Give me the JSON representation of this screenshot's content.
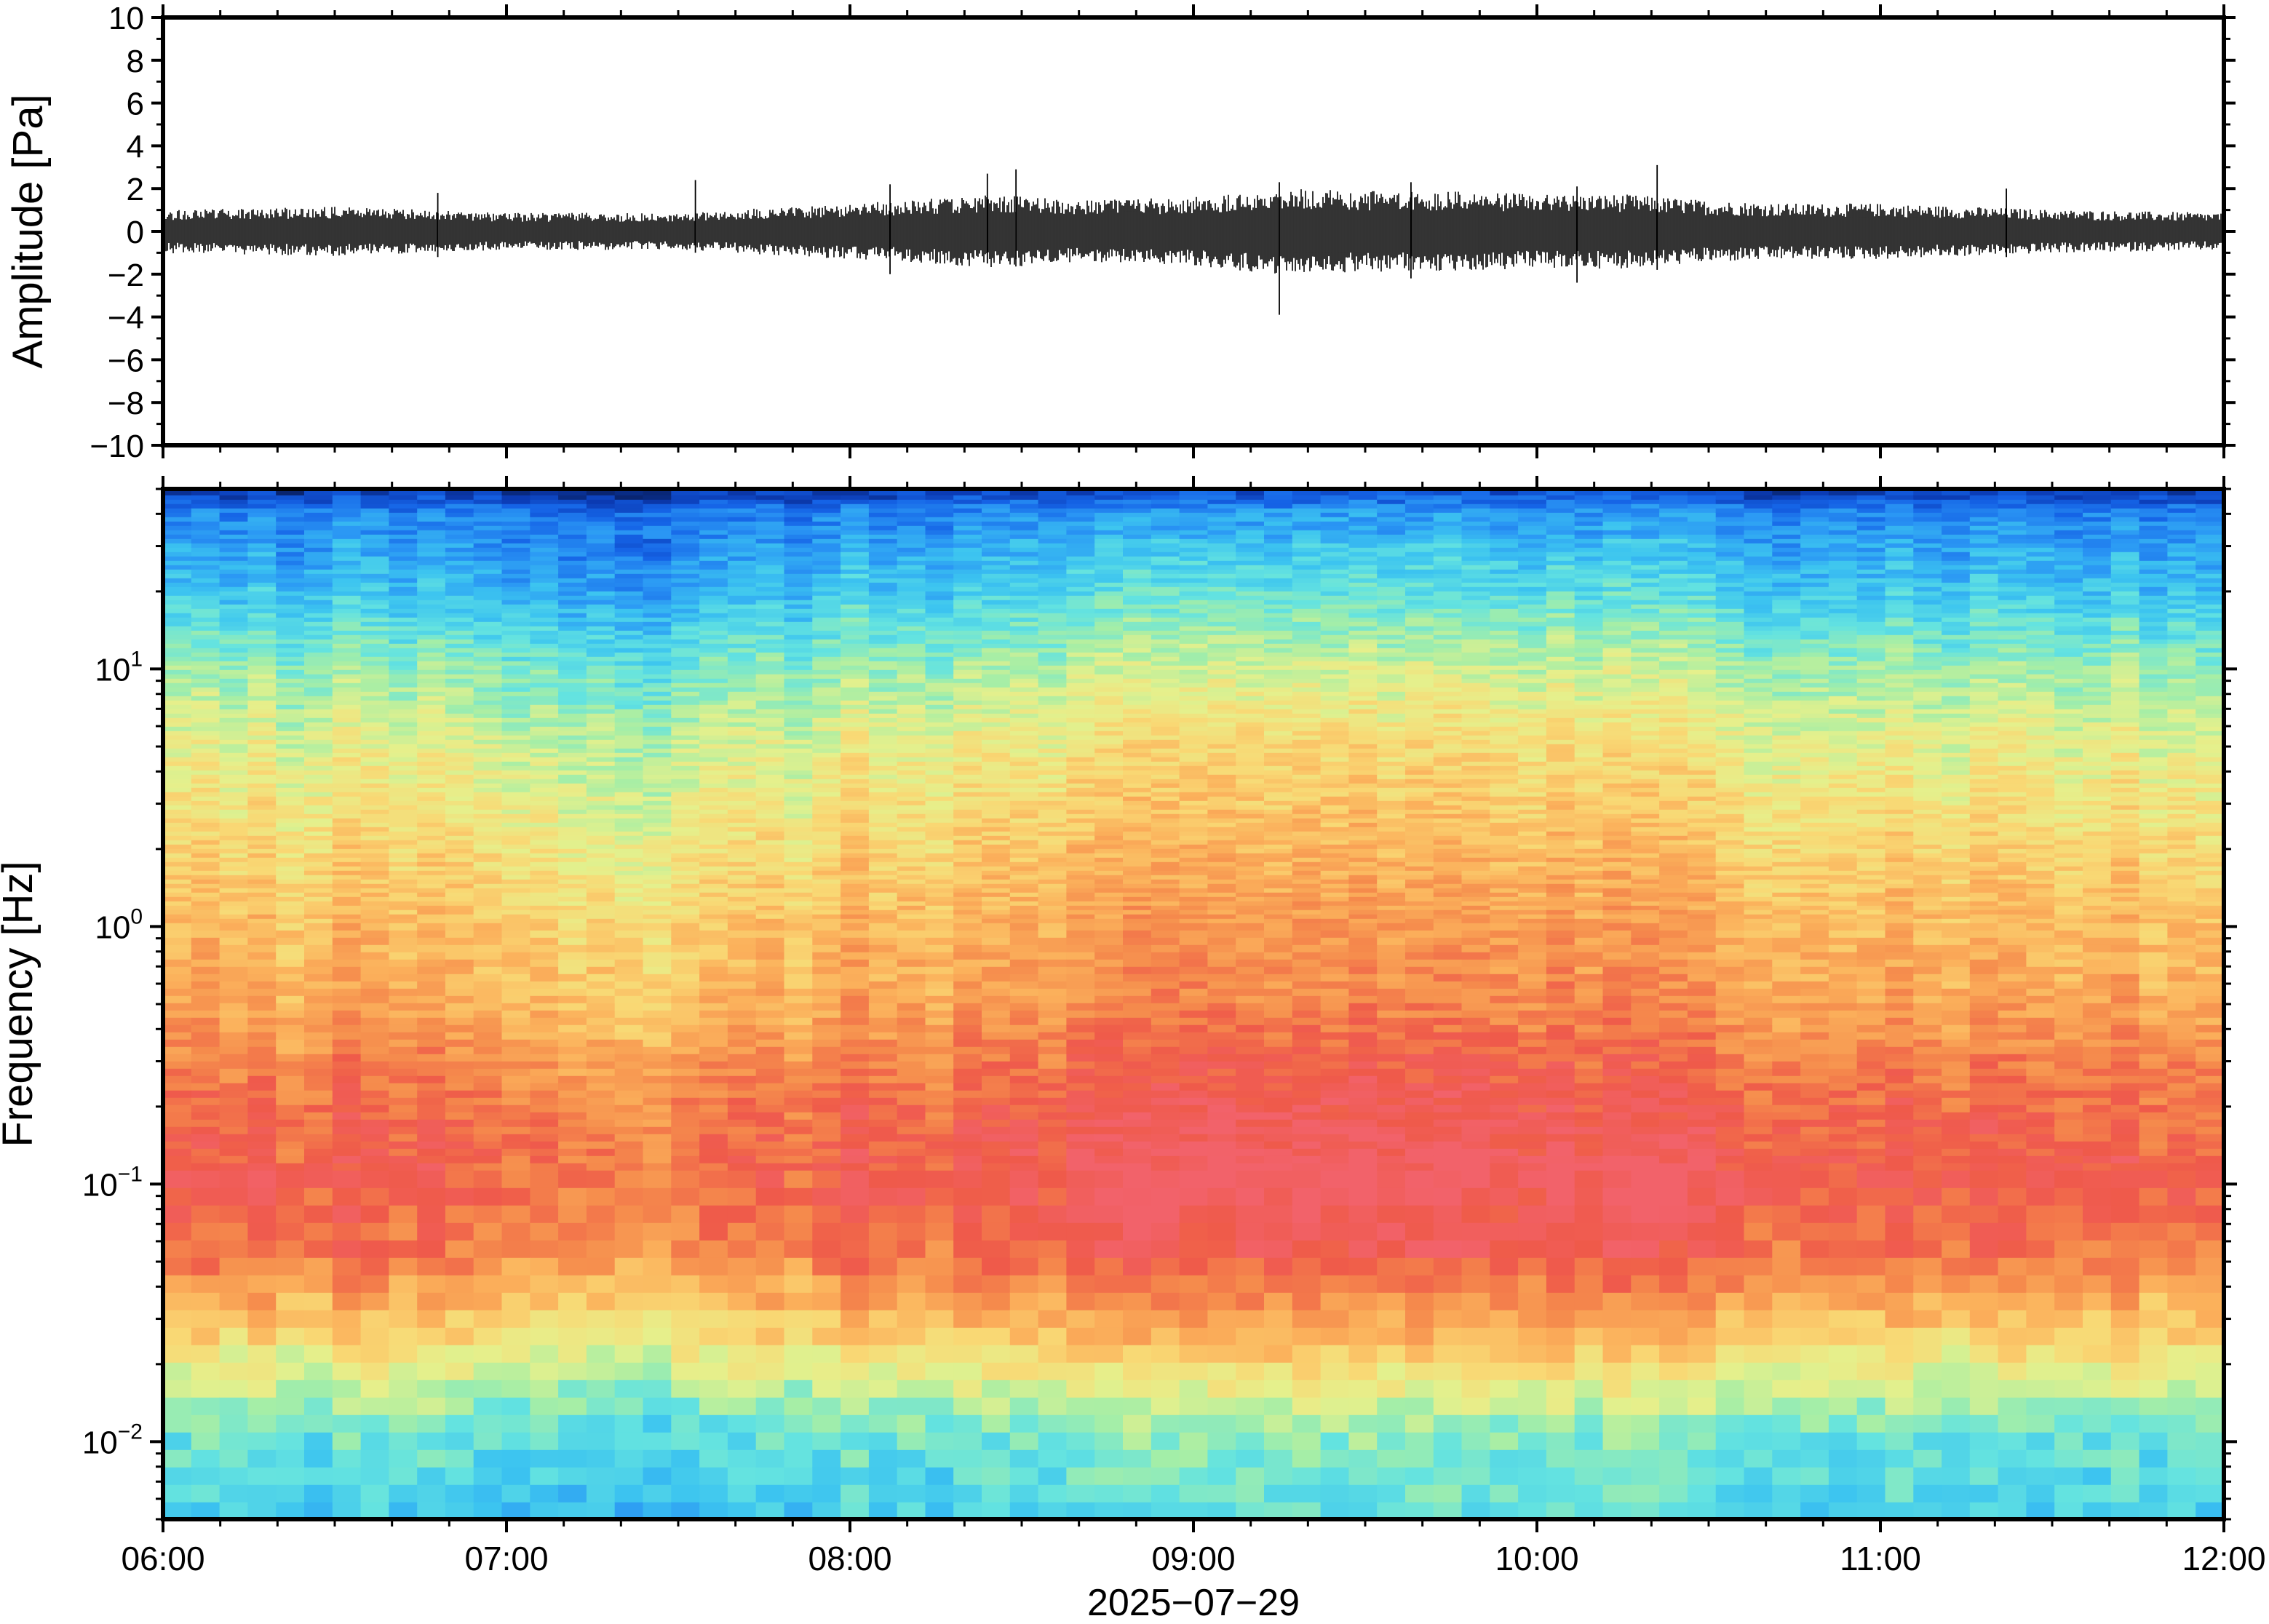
{
  "figure": {
    "date_label": "2025−07−29",
    "background": "#ffffff"
  },
  "chart_data": [
    {
      "type": "line",
      "name": "waveform",
      "ylabel": "Amplitude [Pa]",
      "xlabel": "",
      "ylim": [
        -10,
        10
      ],
      "xlim": [
        "06:00",
        "12:00"
      ],
      "y_ticks": [
        10,
        8,
        6,
        4,
        2,
        0,
        -2,
        -4,
        -6,
        -8,
        -10
      ],
      "y_tick_labels": [
        "10",
        "8",
        "6",
        "4",
        "2",
        "0",
        "−2",
        "−4",
        "−6",
        "−8",
        "−10"
      ],
      "grid": false,
      "line_color": "#000000",
      "envelope": {
        "times": [
          "06:00",
          "06:30",
          "07:00",
          "07:30",
          "08:00",
          "08:10",
          "08:25",
          "08:40",
          "09:00",
          "09:15",
          "09:30",
          "09:45",
          "10:00",
          "10:15",
          "10:30",
          "10:45",
          "11:00",
          "11:30",
          "12:00"
        ],
        "half_amplitude_pa": [
          0.7,
          0.8,
          0.6,
          0.6,
          0.9,
          1.0,
          1.2,
          1.0,
          1.1,
          1.4,
          1.3,
          1.3,
          1.2,
          1.2,
          1.0,
          0.9,
          0.9,
          0.7,
          0.6
        ]
      },
      "spikes": [
        {
          "time": "06:48",
          "min": -1.2,
          "max": 1.8
        },
        {
          "time": "07:33",
          "min": -1.0,
          "max": 2.4
        },
        {
          "time": "08:07",
          "min": -2.0,
          "max": 2.2
        },
        {
          "time": "08:24",
          "min": -1.5,
          "max": 2.7
        },
        {
          "time": "08:29",
          "min": -1.3,
          "max": 2.9
        },
        {
          "time": "09:15",
          "min": -3.9,
          "max": 2.3
        },
        {
          "time": "09:38",
          "min": -2.2,
          "max": 2.3
        },
        {
          "time": "10:07",
          "min": -2.4,
          "max": 2.1
        },
        {
          "time": "10:21",
          "min": -1.8,
          "max": 3.1
        },
        {
          "time": "11:22",
          "min": -1.2,
          "max": 2.0
        }
      ]
    },
    {
      "type": "heatmap",
      "name": "spectrogram",
      "ylabel": "Frequency [Hz]",
      "xlabel": "2025−07−29",
      "y_scale": "log",
      "ylim": [
        0.005,
        50
      ],
      "y_ticks": [
        0.01,
        0.1,
        1,
        10
      ],
      "y_tick_labels": [
        {
          "base": "10",
          "exp": "−2"
        },
        {
          "base": "10",
          "exp": "−1"
        },
        {
          "base": "10",
          "exp": "0"
        },
        {
          "base": "10",
          "exp": "1"
        }
      ],
      "x_ticks": [
        "06:00",
        "07:00",
        "08:00",
        "09:00",
        "10:00",
        "11:00",
        "12:00"
      ],
      "colormap": [
        "#081d58",
        "#0b3bb4",
        "#1563e6",
        "#2a96f4",
        "#3cc4f0",
        "#64e3e0",
        "#a6eea6",
        "#e5f08c",
        "#f9d874",
        "#fbb05b",
        "#f58a4c",
        "#ef5a4a",
        "#f2626a"
      ],
      "columns": 73,
      "time_loudness_profile": {
        "times": [
          "06:00",
          "07:00",
          "07:25",
          "08:00",
          "08:30",
          "09:00",
          "09:30",
          "10:00",
          "10:30",
          "11:00",
          "11:30",
          "12:00"
        ],
        "relative_level": [
          0.0,
          0.0,
          -0.12,
          0.02,
          0.05,
          0.12,
          0.15,
          0.12,
          0.08,
          0.04,
          0.03,
          -0.02
        ]
      },
      "spectral_profile": {
        "freq_hz": [
          0.005,
          0.01,
          0.02,
          0.05,
          0.1,
          0.2,
          0.5,
          1,
          2,
          5,
          10,
          20,
          40,
          50
        ],
        "relative_level": [
          0.36,
          0.42,
          0.62,
          0.86,
          0.92,
          0.88,
          0.76,
          0.72,
          0.66,
          0.58,
          0.48,
          0.33,
          0.22,
          0.05
        ]
      },
      "grid": false
    }
  ]
}
